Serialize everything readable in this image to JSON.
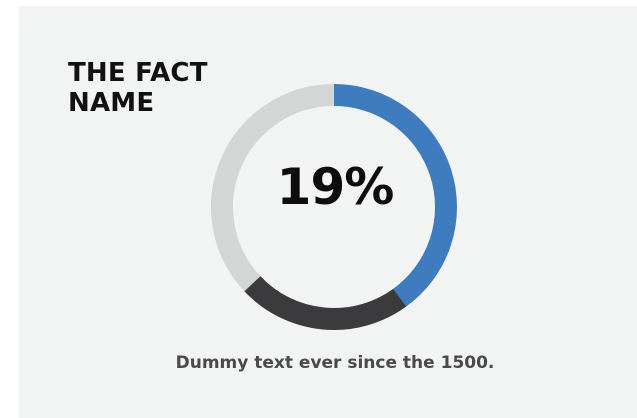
{
  "title_lines": [
    "THE FACT",
    "NAME"
  ],
  "caption": "Dummy text ever since the 1500.",
  "chart_data": {
    "type": "pie",
    "variant": "donut",
    "center_label": "19%",
    "slices": [
      {
        "value": 40,
        "color": "#3f7bbf"
      },
      {
        "value": 23,
        "color": "#3b3b3d"
      },
      {
        "value": 37,
        "color": "#d4d5d5"
      }
    ],
    "start": "top",
    "direction": "clockwise"
  },
  "colors": {
    "background": "#f2f3f3",
    "accent": "#3f7bbf",
    "dark": "#3b3b3d",
    "track": "#d4d5d5"
  }
}
